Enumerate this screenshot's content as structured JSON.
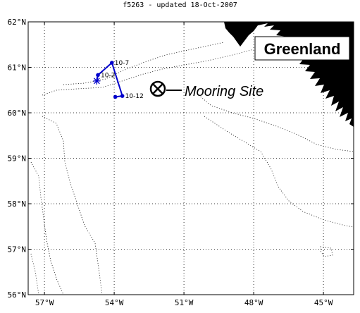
{
  "title": "f5263 - updated 18-Oct-2007",
  "map": {
    "lon_range": [
      -57.7,
      -43.7
    ],
    "lat_range": [
      56,
      62
    ],
    "lon_ticks": [
      {
        "value": -57,
        "label": "57°W"
      },
      {
        "value": -54,
        "label": "54°W"
      },
      {
        "value": -51,
        "label": "51°W"
      },
      {
        "value": -48,
        "label": "48°W"
      },
      {
        "value": -45,
        "label": "45°W"
      }
    ],
    "lat_ticks": [
      {
        "value": 56,
        "label": "56°N"
      },
      {
        "value": 57,
        "label": "57°N"
      },
      {
        "value": 58,
        "label": "58°N"
      },
      {
        "value": 59,
        "label": "59°N"
      },
      {
        "value": 60,
        "label": "60°N"
      },
      {
        "value": 61,
        "label": "61°N"
      },
      {
        "value": 62,
        "label": "62°N"
      }
    ],
    "grid": true,
    "region_label": "Greenland",
    "mooring": {
      "label": "Mooring Site",
      "lon": -52.2,
      "lat": 60.6
    },
    "track": {
      "color": "#0000cc",
      "points": [
        {
          "lon": -54.75,
          "lat": 60.7,
          "label": "",
          "marker": "star"
        },
        {
          "lon": -54.7,
          "lat": 60.83,
          "label": "10-2",
          "marker": "dot"
        },
        {
          "lon": -54.1,
          "lat": 61.1,
          "label": "10-7",
          "marker": "dot"
        },
        {
          "lon": -53.65,
          "lat": 60.37,
          "label": "10-12",
          "marker": "dot"
        },
        {
          "lon": -53.95,
          "lat": 60.35,
          "label": "",
          "marker": "dot"
        }
      ]
    }
  }
}
